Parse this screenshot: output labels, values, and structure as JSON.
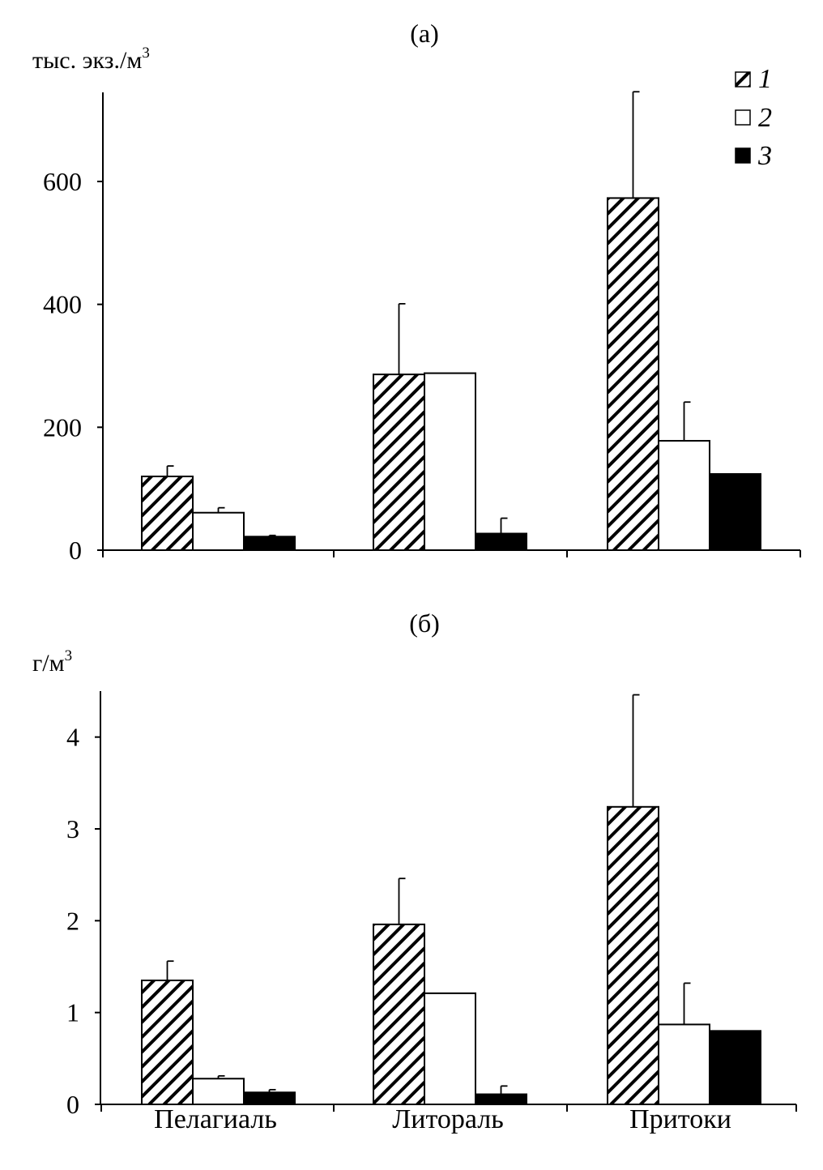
{
  "colors": {
    "series_1": "hatched",
    "series_2": "#ffffff",
    "series_3": "#000000",
    "axis": "#000000"
  },
  "legend": {
    "placement": "top-right",
    "items": [
      "1",
      "2",
      "3"
    ]
  },
  "categories": [
    "Пелагиаль",
    "Литораль",
    "Притоки"
  ],
  "chart_data": [
    {
      "type": "bar",
      "panel_label": "(а)",
      "ylabel": "тыс. экз./м",
      "ylabel_sup": "3",
      "ylim": [
        0,
        745
      ],
      "yticks": [
        0,
        200,
        400,
        600
      ],
      "ytick_labels": [
        "0",
        "200",
        "400",
        "600"
      ],
      "grid": false,
      "categories": [
        "Пелагиаль",
        "Литораль",
        "Притоки"
      ],
      "series": [
        {
          "name": "1",
          "fill": "hatched",
          "values": [
            120,
            286,
            573
          ],
          "errors": [
            17,
            115,
            173
          ]
        },
        {
          "name": "2",
          "fill": "white",
          "values": [
            61,
            288,
            178
          ],
          "errors": [
            8,
            0,
            63
          ]
        },
        {
          "name": "3",
          "fill": "black",
          "values": [
            22,
            27,
            124
          ],
          "errors": [
            2,
            25,
            0
          ]
        }
      ]
    },
    {
      "type": "bar",
      "panel_label": "(б)",
      "ylabel": "г/м",
      "ylabel_sup": "3",
      "ylim": [
        0,
        4.5
      ],
      "yticks": [
        0,
        1,
        2,
        3,
        4
      ],
      "ytick_labels": [
        "0",
        "1",
        "2",
        "3",
        "4"
      ],
      "grid": false,
      "categories": [
        "Пелагиаль",
        "Литораль",
        "Притоки"
      ],
      "series": [
        {
          "name": "1",
          "fill": "hatched",
          "values": [
            1.35,
            1.96,
            3.24
          ],
          "errors": [
            0.21,
            0.5,
            1.22
          ]
        },
        {
          "name": "2",
          "fill": "white",
          "values": [
            0.28,
            1.21,
            0.87
          ],
          "errors": [
            0.03,
            0,
            0.45
          ]
        },
        {
          "name": "3",
          "fill": "black",
          "values": [
            0.13,
            0.11,
            0.8
          ],
          "errors": [
            0.03,
            0.09,
            0
          ]
        }
      ]
    }
  ]
}
